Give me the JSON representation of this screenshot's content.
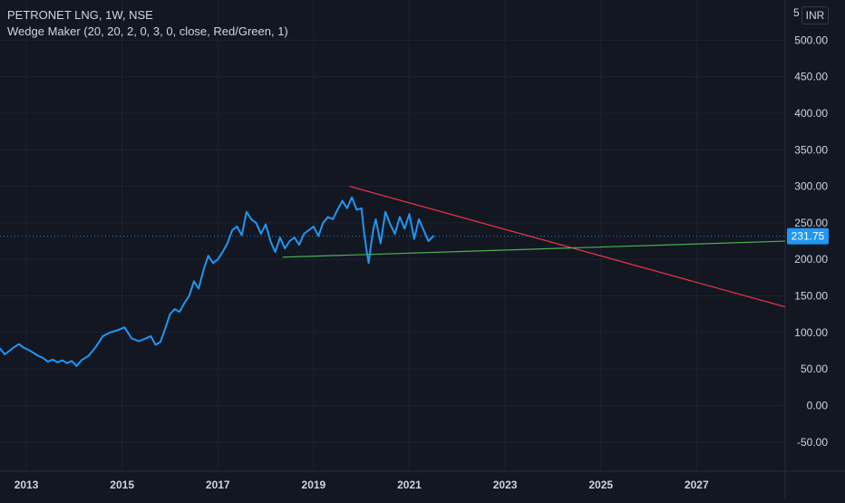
{
  "header": {
    "symbol_line": "PETRONET LNG, 1W, NSE",
    "indicator_line": "Wedge Maker (20, 20, 2, 0, 3, 0, close, Red/Green, 1)"
  },
  "currency": "INR",
  "price_axis_clipped_label": "5",
  "last_price_label": "231.75",
  "colors": {
    "background": "#131722",
    "price_line": "#2196f3",
    "upper_line": "#f23645",
    "lower_line": "#4caf50",
    "grid": "#1e222d",
    "axis_text": "#d1d4dc",
    "last_price_badge": "#2196f3"
  },
  "chart_data": {
    "type": "line",
    "title": "PETRONET LNG, 1W, NSE",
    "xlabel": "",
    "ylabel": "",
    "x_ticks": [
      "2013",
      "2015",
      "2017",
      "2019",
      "2021",
      "2023",
      "2025",
      "2027"
    ],
    "y_ticks": [
      "500.00",
      "450.00",
      "400.00",
      "350.00",
      "300.00",
      "250.00",
      "200.00",
      "150.00",
      "100.00",
      "50.00",
      "0.00",
      "-50.00"
    ],
    "xlim": [
      2012.45,
      2028.85
    ],
    "ylim": [
      -90,
      555
    ],
    "grid": true,
    "last_value": 231.75,
    "series": [
      {
        "name": "",
        "x": [
          2012.45,
          2012.55,
          2012.65,
          2012.75,
          2012.85,
          2012.95,
          2013.05,
          2013.15,
          2013.25,
          2013.35,
          2013.45,
          2013.55,
          2013.65,
          2013.75,
          2013.85,
          2013.95,
          2014.05,
          2014.15,
          2014.3,
          2014.45,
          2014.6,
          2014.75,
          2014.9,
          2015.05,
          2015.2,
          2015.35,
          2015.5,
          2015.6,
          2015.7,
          2015.8,
          2015.9,
          2016.0,
          2016.1,
          2016.2,
          2016.3,
          2016.4,
          2016.5,
          2016.6,
          2016.7,
          2016.8,
          2016.9,
          2017.0,
          2017.1,
          2017.2,
          2017.3,
          2017.4,
          2017.5,
          2017.6,
          2017.7,
          2017.8,
          2017.9,
          2018.0,
          2018.1,
          2018.2,
          2018.3,
          2018.4,
          2018.5,
          2018.6,
          2018.7,
          2018.8,
          2018.9,
          2019.0,
          2019.1,
          2019.2,
          2019.3,
          2019.4,
          2019.5,
          2019.6,
          2019.7,
          2019.8,
          2019.9,
          2020.0,
          2020.05,
          2020.1,
          2020.15,
          2020.2,
          2020.25,
          2020.3,
          2020.35,
          2020.4,
          2020.5,
          2020.6,
          2020.7,
          2020.8,
          2020.9,
          2021.0,
          2021.1,
          2021.2,
          2021.3,
          2021.4,
          2021.5
        ],
        "y": [
          78,
          70,
          75,
          80,
          84,
          79,
          76,
          72,
          68,
          65,
          60,
          63,
          59,
          62,
          58,
          61,
          54,
          62,
          68,
          80,
          95,
          100,
          103,
          107,
          92,
          88,
          92,
          95,
          83,
          87,
          105,
          125,
          132,
          128,
          140,
          150,
          170,
          160,
          185,
          205,
          195,
          200,
          210,
          222,
          240,
          245,
          233,
          265,
          255,
          250,
          235,
          248,
          225,
          210,
          230,
          215,
          225,
          230,
          220,
          235,
          240,
          245,
          232,
          250,
          258,
          255,
          268,
          280,
          270,
          285,
          268,
          270,
          240,
          215,
          195,
          220,
          242,
          255,
          238,
          222,
          265,
          248,
          235,
          258,
          242,
          262,
          228,
          255,
          240,
          225,
          231.75
        ]
      }
    ],
    "trendlines": [
      {
        "name": "",
        "x": [
          2019.75,
          2028.85
        ],
        "y": [
          300,
          135
        ]
      },
      {
        "name": "",
        "x": [
          2018.35,
          2028.85
        ],
        "y": [
          203,
          225
        ]
      }
    ]
  }
}
